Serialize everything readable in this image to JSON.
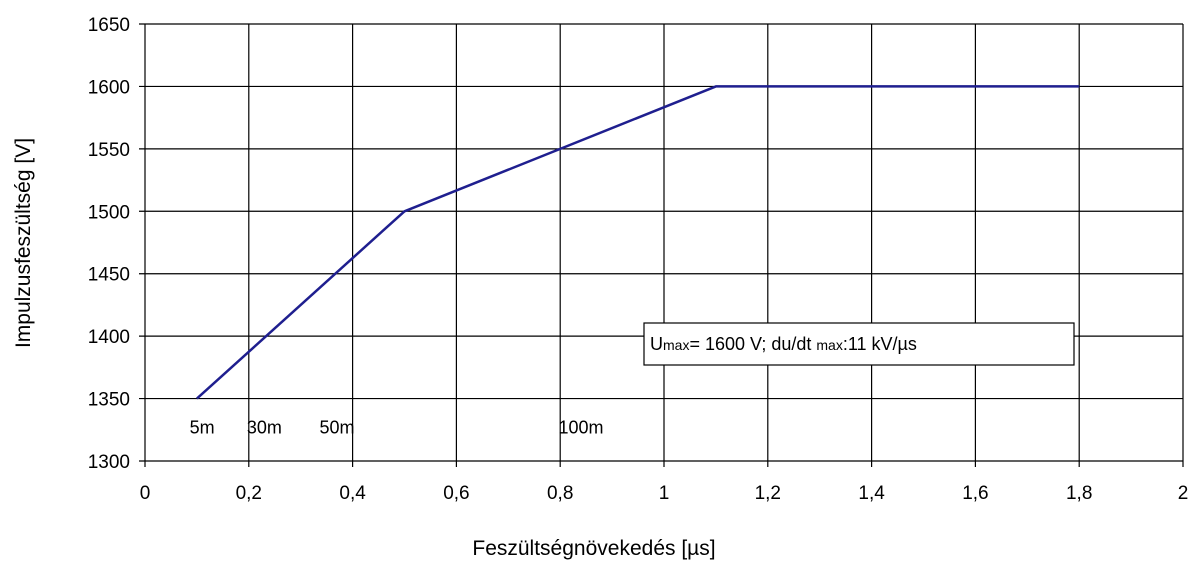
{
  "chart_data": {
    "type": "line",
    "title": "",
    "xlabel": "Feszültségnövekedés [µs]",
    "ylabel": "Impulzusfeszültség [V]",
    "xlim": [
      0,
      2
    ],
    "ylim": [
      1300,
      1650
    ],
    "grid": true,
    "x_ticks": [
      0,
      0.2,
      0.4,
      0.6,
      0.8,
      1,
      1.2,
      1.4,
      1.6,
      1.8,
      2
    ],
    "x_tick_labels": [
      "0",
      "0,2",
      "0,4",
      "0,6",
      "0,8",
      "1",
      "1,2",
      "1,4",
      "1,6",
      "1,8",
      "2"
    ],
    "y_ticks": [
      1300,
      1350,
      1400,
      1450,
      1500,
      1550,
      1600,
      1650
    ],
    "y_tick_labels": [
      "1300",
      "1350",
      "1400",
      "1450",
      "1500",
      "1550",
      "1600",
      "1650"
    ],
    "line_color": "#1f1f8f",
    "series": [
      {
        "x": [
          0.1,
          0.5,
          0.8,
          1.1,
          1.8
        ],
        "y": [
          1350,
          1500,
          1550,
          1600,
          1600
        ]
      }
    ],
    "annotations": [
      {
        "text": "5m",
        "x": 0.11,
        "y": 1322
      },
      {
        "text": "30m",
        "x": 0.23,
        "y": 1322
      },
      {
        "text": "50m",
        "x": 0.37,
        "y": 1322
      },
      {
        "text": "100m",
        "x": 0.84,
        "y": 1322
      }
    ],
    "info_box": {
      "prefix": "U",
      "sub1": "max",
      "middle": "= 1600 V; du/dt ",
      "sub2": "max",
      "suffix": ":11 kV/µs"
    }
  }
}
